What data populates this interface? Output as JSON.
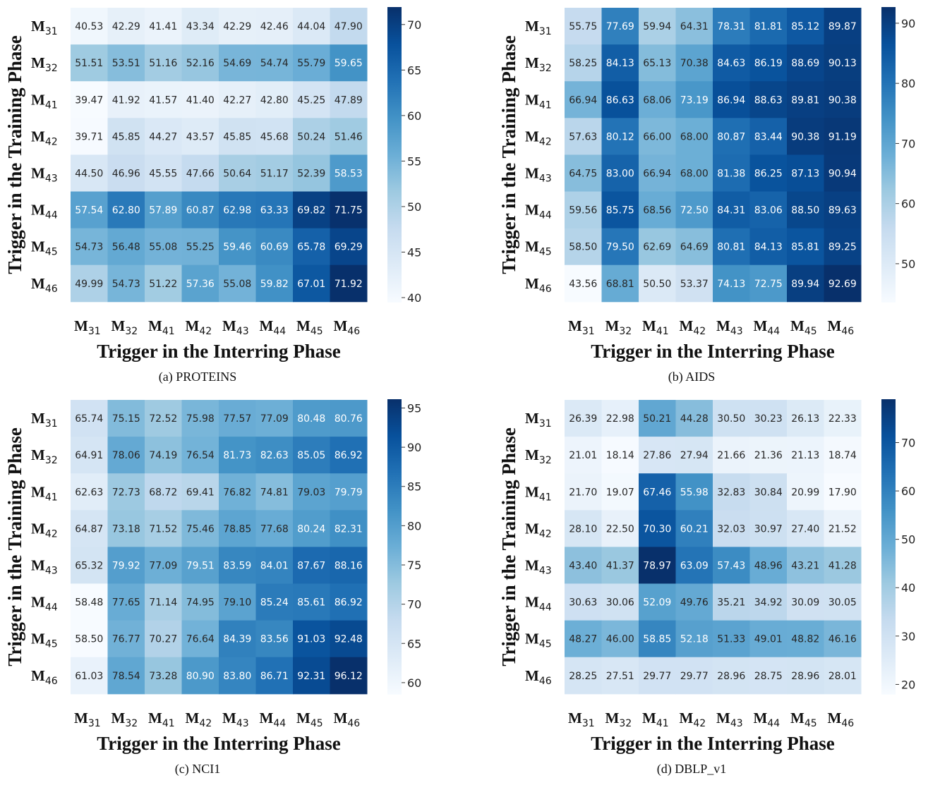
{
  "chart_data": [
    {
      "type": "heatmap",
      "caption": "(a) PROTEINS",
      "xlabel": "Trigger in the Interring Phase",
      "ylabel": "Trigger in the Training Phase",
      "x_ticks": [
        "M31",
        "M32",
        "M41",
        "M42",
        "M43",
        "M44",
        "M45",
        "M46"
      ],
      "y_ticks": [
        "M31",
        "M32",
        "M41",
        "M42",
        "M43",
        "M44",
        "M45",
        "M46"
      ],
      "colorbar": {
        "range": [
          39.47,
          71.92
        ],
        "ticks": [
          40,
          45,
          50,
          55,
          60,
          65,
          70
        ]
      },
      "values": [
        [
          40.53,
          42.29,
          41.41,
          43.34,
          42.29,
          42.46,
          44.04,
          47.9
        ],
        [
          51.51,
          53.51,
          51.16,
          52.16,
          54.69,
          54.74,
          55.79,
          59.65
        ],
        [
          39.47,
          41.92,
          41.57,
          41.4,
          42.27,
          42.8,
          45.25,
          47.89
        ],
        [
          39.71,
          45.85,
          44.27,
          43.57,
          45.85,
          45.68,
          50.24,
          51.46
        ],
        [
          44.5,
          46.96,
          45.55,
          47.66,
          50.64,
          51.17,
          52.39,
          58.53
        ],
        [
          57.54,
          62.8,
          57.89,
          60.87,
          62.98,
          63.33,
          69.82,
          71.75
        ],
        [
          54.73,
          56.48,
          55.08,
          55.25,
          59.46,
          60.69,
          65.78,
          69.29
        ],
        [
          49.99,
          54.73,
          51.22,
          57.36,
          55.08,
          59.82,
          67.01,
          71.92
        ]
      ]
    },
    {
      "type": "heatmap",
      "caption": "(b) AIDS",
      "xlabel": "Trigger in the Interring Phase",
      "ylabel": "Trigger in the Training Phase",
      "x_ticks": [
        "M31",
        "M32",
        "M41",
        "M42",
        "M43",
        "M44",
        "M45",
        "M46"
      ],
      "y_ticks": [
        "M31",
        "M32",
        "M41",
        "M42",
        "M43",
        "M44",
        "M45",
        "M46"
      ],
      "colorbar": {
        "range": [
          43.56,
          92.69
        ],
        "ticks": [
          50,
          60,
          70,
          80,
          90
        ]
      },
      "values": [
        [
          55.75,
          77.69,
          59.94,
          64.31,
          78.31,
          81.81,
          85.12,
          89.87
        ],
        [
          58.25,
          84.13,
          65.13,
          70.38,
          84.63,
          86.19,
          88.69,
          90.13
        ],
        [
          66.94,
          86.63,
          68.06,
          73.19,
          86.94,
          88.63,
          89.81,
          90.38
        ],
        [
          57.63,
          80.12,
          66.0,
          68.0,
          80.87,
          83.44,
          90.38,
          91.19
        ],
        [
          64.75,
          83.0,
          66.94,
          68.0,
          81.38,
          86.25,
          87.13,
          90.94
        ],
        [
          59.56,
          85.75,
          68.56,
          72.5,
          84.31,
          83.06,
          88.5,
          89.63
        ],
        [
          58.5,
          79.5,
          62.69,
          64.69,
          80.81,
          84.13,
          85.81,
          89.25
        ],
        [
          43.56,
          68.81,
          50.5,
          53.37,
          74.13,
          72.75,
          89.94,
          92.69
        ]
      ]
    },
    {
      "type": "heatmap",
      "caption": "(c) NCI1",
      "xlabel": "Trigger in the Interring Phase",
      "ylabel": "Trigger in the Training Phase",
      "x_ticks": [
        "M31",
        "M32",
        "M41",
        "M42",
        "M43",
        "M44",
        "M45",
        "M46"
      ],
      "y_ticks": [
        "M31",
        "M32",
        "M41",
        "M42",
        "M43",
        "M44",
        "M45",
        "M46"
      ],
      "colorbar": {
        "range": [
          58.48,
          96.12
        ],
        "ticks": [
          60,
          65,
          70,
          75,
          80,
          85,
          90,
          95
        ]
      },
      "values": [
        [
          65.74,
          75.15,
          72.52,
          75.98,
          77.57,
          77.09,
          80.48,
          80.76
        ],
        [
          64.91,
          78.06,
          74.19,
          76.54,
          81.73,
          82.63,
          85.05,
          86.92
        ],
        [
          62.63,
          72.73,
          68.72,
          69.41,
          76.82,
          74.81,
          79.03,
          79.79
        ],
        [
          64.87,
          73.18,
          71.52,
          75.46,
          78.85,
          77.68,
          80.24,
          82.31
        ],
        [
          65.32,
          79.92,
          77.09,
          79.51,
          83.59,
          84.01,
          87.67,
          88.16
        ],
        [
          58.48,
          77.65,
          71.14,
          74.95,
          79.1,
          85.24,
          85.61,
          86.92
        ],
        [
          58.5,
          76.77,
          70.27,
          76.64,
          84.39,
          83.56,
          91.03,
          92.48
        ],
        [
          61.03,
          78.54,
          73.28,
          80.9,
          83.8,
          86.71,
          92.31,
          96.12
        ]
      ]
    },
    {
      "type": "heatmap",
      "caption": "(d) DBLP_v1",
      "xlabel": "Trigger in the Interring Phase",
      "ylabel": "Trigger in the Training Phase",
      "x_ticks": [
        "M31",
        "M32",
        "M41",
        "M42",
        "M43",
        "M44",
        "M45",
        "M46"
      ],
      "y_ticks": [
        "M31",
        "M32",
        "M41",
        "M42",
        "M43",
        "M44",
        "M45",
        "M46"
      ],
      "colorbar": {
        "range": [
          17.9,
          78.97
        ],
        "ticks": [
          20,
          30,
          40,
          50,
          60,
          70
        ]
      },
      "values": [
        [
          26.39,
          22.98,
          50.21,
          44.28,
          30.5,
          30.23,
          26.13,
          22.33
        ],
        [
          21.01,
          18.14,
          27.86,
          27.94,
          21.66,
          21.36,
          21.13,
          18.74
        ],
        [
          21.7,
          19.07,
          67.46,
          55.98,
          32.83,
          30.84,
          20.99,
          17.9
        ],
        [
          28.1,
          22.5,
          70.3,
          60.21,
          32.03,
          30.97,
          27.4,
          21.52
        ],
        [
          43.4,
          41.37,
          78.97,
          63.09,
          57.43,
          48.96,
          43.21,
          41.28
        ],
        [
          30.63,
          30.06,
          52.09,
          49.76,
          35.21,
          34.92,
          30.09,
          30.05
        ],
        [
          48.27,
          46.0,
          58.85,
          52.18,
          51.33,
          49.01,
          48.82,
          46.16
        ],
        [
          28.25,
          27.51,
          29.77,
          29.77,
          28.96,
          28.75,
          28.96,
          28.01
        ]
      ]
    }
  ]
}
